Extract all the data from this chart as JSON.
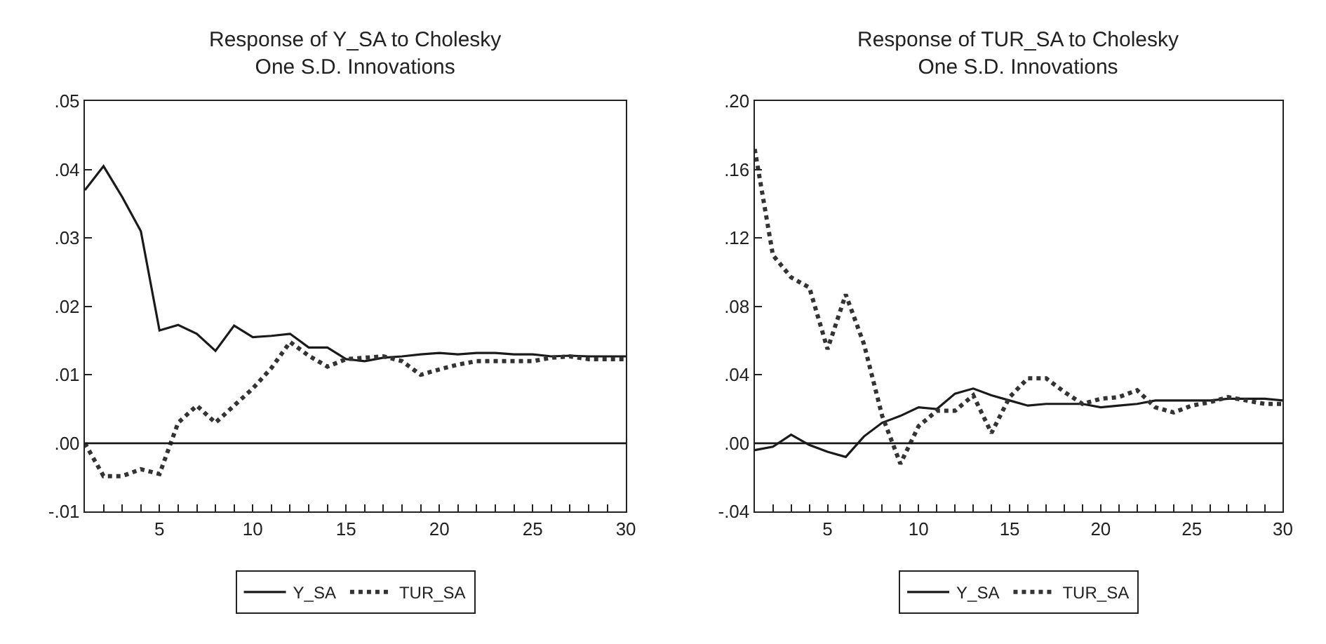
{
  "chart_data": [
    {
      "type": "line",
      "title": "Response of Y_SA to Cholesky\nOne S.D. Innovations",
      "x": [
        1,
        2,
        3,
        4,
        5,
        6,
        7,
        8,
        9,
        10,
        11,
        12,
        13,
        14,
        15,
        16,
        17,
        18,
        19,
        20,
        21,
        22,
        23,
        24,
        25,
        26,
        27,
        28,
        29,
        30
      ],
      "series": [
        {
          "name": "Y_SA",
          "color": "#1a1a1a",
          "line_style": "solid",
          "values": [
            0.037,
            0.0405,
            0.036,
            0.031,
            0.0165,
            0.0173,
            0.016,
            0.0135,
            0.0172,
            0.0155,
            0.0157,
            0.016,
            0.014,
            0.014,
            0.0123,
            0.012,
            0.0125,
            0.0127,
            0.013,
            0.0132,
            0.013,
            0.0132,
            0.0132,
            0.013,
            0.013,
            0.0127,
            0.0128,
            0.0127,
            0.0127,
            0.0127
          ]
        },
        {
          "name": "TUR_SA",
          "color": "#333333",
          "line_style": "dotted",
          "values": [
            0.0,
            -0.0048,
            -0.0048,
            -0.0038,
            -0.0045,
            0.003,
            0.0055,
            0.003,
            0.0055,
            0.008,
            0.011,
            0.0148,
            0.0128,
            0.0112,
            0.0123,
            0.0125,
            0.0127,
            0.012,
            0.01,
            0.0108,
            0.0115,
            0.012,
            0.012,
            0.012,
            0.012,
            0.0125,
            0.0127,
            0.0123,
            0.0123,
            0.0123
          ]
        }
      ],
      "xlim": [
        1,
        30
      ],
      "xticks": [
        {
          "value": 1,
          "label": null
        },
        {
          "value": 2,
          "label": null
        },
        {
          "value": 3,
          "label": null
        },
        {
          "value": 4,
          "label": null
        },
        5,
        {
          "value": 6,
          "label": null
        },
        {
          "value": 7,
          "label": null
        },
        {
          "value": 8,
          "label": null
        },
        {
          "value": 9,
          "label": null
        },
        10,
        {
          "value": 11,
          "label": null
        },
        {
          "value": 12,
          "label": null
        },
        {
          "value": 13,
          "label": null
        },
        {
          "value": 14,
          "label": null
        },
        15,
        {
          "value": 16,
          "label": null
        },
        {
          "value": 17,
          "label": null
        },
        {
          "value": 18,
          "label": null
        },
        {
          "value": 19,
          "label": null
        },
        20,
        {
          "value": 21,
          "label": null
        },
        {
          "value": 22,
          "label": null
        },
        {
          "value": 23,
          "label": null
        },
        {
          "value": 24,
          "label": null
        },
        25,
        {
          "value": 26,
          "label": null
        },
        {
          "value": 27,
          "label": null
        },
        {
          "value": 28,
          "label": null
        },
        {
          "value": 29,
          "label": null
        },
        30
      ],
      "ylim": [
        -0.01,
        0.05
      ],
      "yticks": [
        {
          "value": -0.01,
          "label": "-.01"
        },
        {
          "value": 0,
          "label": ".00"
        },
        {
          "value": 0.01,
          "label": ".01"
        },
        {
          "value": 0.02,
          "label": ".02"
        },
        {
          "value": 0.03,
          "label": ".03"
        },
        {
          "value": 0.04,
          "label": ".04"
        },
        {
          "value": 0.05,
          "label": ".05"
        }
      ],
      "ref_lines": [
        {
          "axis": "y",
          "value": 0,
          "color": "#1a1a1a"
        }
      ],
      "legend": "bottom",
      "marker": "none"
    },
    {
      "type": "line",
      "title": "Response of TUR_SA to Cholesky\nOne S.D. Innovations",
      "x": [
        1,
        2,
        3,
        4,
        5,
        6,
        7,
        8,
        9,
        10,
        11,
        12,
        13,
        14,
        15,
        16,
        17,
        18,
        19,
        20,
        21,
        22,
        23,
        24,
        25,
        26,
        27,
        28,
        29,
        30
      ],
      "series": [
        {
          "name": "Y_SA",
          "color": "#1a1a1a",
          "line_style": "solid",
          "values": [
            -0.004,
            -0.002,
            0.005,
            -0.001,
            -0.005,
            -0.008,
            0.004,
            0.012,
            0.016,
            0.021,
            0.02,
            0.029,
            0.032,
            0.028,
            0.025,
            0.022,
            0.023,
            0.023,
            0.023,
            0.021,
            0.022,
            0.023,
            0.025,
            0.025,
            0.025,
            0.025,
            0.026,
            0.026,
            0.026,
            0.025
          ]
        },
        {
          "name": "TUR_SA",
          "color": "#333333",
          "line_style": "dotted",
          "values": [
            0.172,
            0.11,
            0.097,
            0.091,
            0.055,
            0.087,
            0.058,
            0.016,
            -0.012,
            0.01,
            0.019,
            0.019,
            0.028,
            0.006,
            0.027,
            0.038,
            0.038,
            0.03,
            0.023,
            0.026,
            0.027,
            0.031,
            0.021,
            0.018,
            0.022,
            0.024,
            0.027,
            0.025,
            0.023,
            0.023
          ]
        }
      ],
      "xlim": [
        1,
        30
      ],
      "xticks": [
        {
          "value": 1,
          "label": null
        },
        {
          "value": 2,
          "label": null
        },
        {
          "value": 3,
          "label": null
        },
        {
          "value": 4,
          "label": null
        },
        5,
        {
          "value": 6,
          "label": null
        },
        {
          "value": 7,
          "label": null
        },
        {
          "value": 8,
          "label": null
        },
        {
          "value": 9,
          "label": null
        },
        10,
        {
          "value": 11,
          "label": null
        },
        {
          "value": 12,
          "label": null
        },
        {
          "value": 13,
          "label": null
        },
        {
          "value": 14,
          "label": null
        },
        15,
        {
          "value": 16,
          "label": null
        },
        {
          "value": 17,
          "label": null
        },
        {
          "value": 18,
          "label": null
        },
        {
          "value": 19,
          "label": null
        },
        20,
        {
          "value": 21,
          "label": null
        },
        {
          "value": 22,
          "label": null
        },
        {
          "value": 23,
          "label": null
        },
        {
          "value": 24,
          "label": null
        },
        25,
        {
          "value": 26,
          "label": null
        },
        {
          "value": 27,
          "label": null
        },
        {
          "value": 28,
          "label": null
        },
        {
          "value": 29,
          "label": null
        },
        30
      ],
      "ylim": [
        -0.04,
        0.2
      ],
      "yticks": [
        {
          "value": -0.04,
          "label": "-.04"
        },
        {
          "value": 0,
          "label": ".00"
        },
        {
          "value": 0.04,
          "label": ".04"
        },
        {
          "value": 0.08,
          "label": ".08"
        },
        {
          "value": 0.12,
          "label": ".12"
        },
        {
          "value": 0.16,
          "label": ".16"
        },
        {
          "value": 0.2,
          "label": ".20"
        }
      ],
      "ref_lines": [
        {
          "axis": "y",
          "value": 0,
          "color": "#1a1a1a"
        }
      ],
      "legend": "bottom",
      "marker": "none"
    }
  ]
}
